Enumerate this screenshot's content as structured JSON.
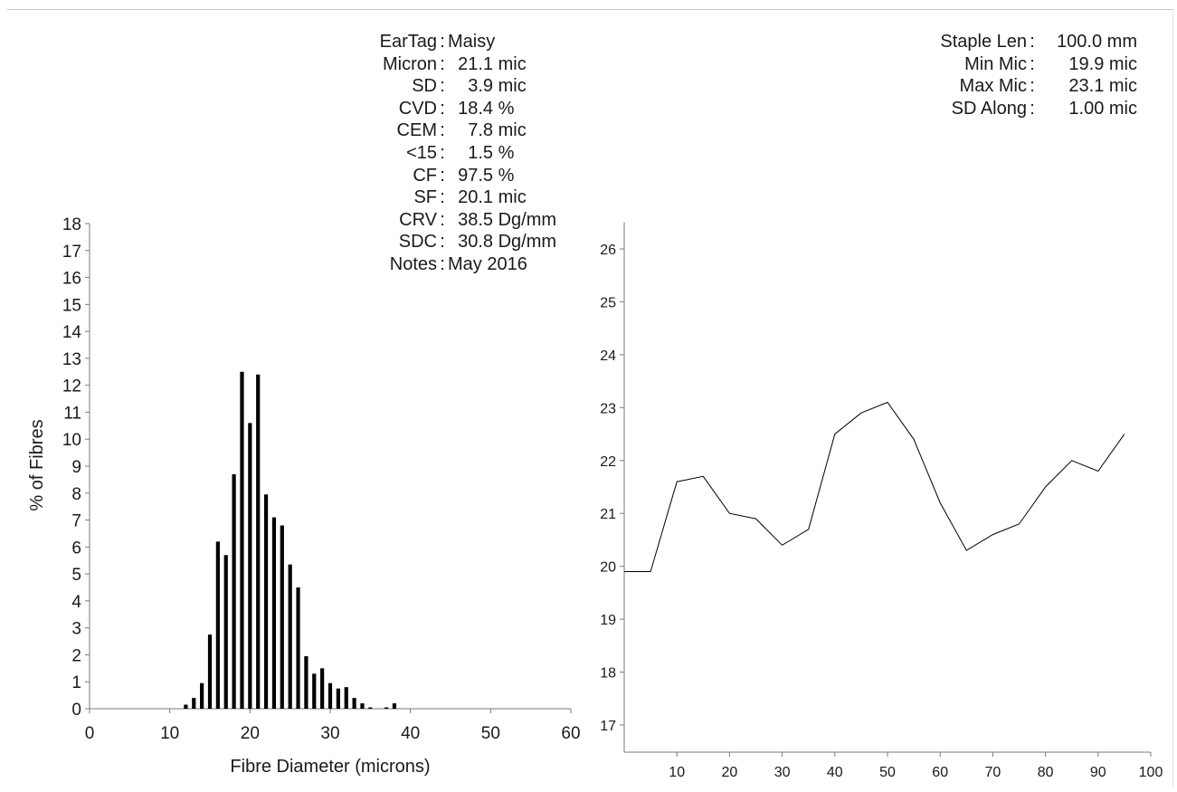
{
  "stats_left": [
    {
      "key": "EarTag",
      "sep": ":",
      "value": "Maisy"
    },
    {
      "key": "Micron",
      "sep": ":",
      "value": "  21.1 mic"
    },
    {
      "key": "SD",
      "sep": ":",
      "value": "    3.9 mic"
    },
    {
      "key": "CVD",
      "sep": ":",
      "value": "  18.4 %"
    },
    {
      "key": "CEM",
      "sep": ":",
      "value": "    7.8 mic"
    },
    {
      "key": "<15",
      "sep": ":",
      "value": "    1.5 %"
    },
    {
      "key": "CF",
      "sep": ":",
      "value": "  97.5 %"
    },
    {
      "key": "SF",
      "sep": ":",
      "value": "  20.1 mic"
    },
    {
      "key": "CRV",
      "sep": ":",
      "value": "  38.5 Dg/mm"
    },
    {
      "key": "SDC",
      "sep": ":",
      "value": "  30.8 Dg/mm"
    },
    {
      "key": "Notes",
      "sep": ":",
      "value": "May 2016"
    }
  ],
  "stats_right": [
    {
      "key": "Staple Len",
      "sep": ":",
      "value": "100.0 mm"
    },
    {
      "key": "Min Mic",
      "sep": ":",
      "value": "19.9 mic"
    },
    {
      "key": "Max Mic",
      "sep": ":",
      "value": "23.1 mic"
    },
    {
      "key": "SD Along",
      "sep": ":",
      "value": "1.00 mic"
    }
  ],
  "chart_data": [
    {
      "type": "bar",
      "title": "",
      "xlabel": "Fibre Diameter (microns)",
      "ylabel": "% of Fibres",
      "xlim": [
        0,
        60
      ],
      "ylim": [
        0,
        18
      ],
      "xticks": [
        0,
        10,
        20,
        30,
        40,
        50,
        60
      ],
      "yticks": [
        0,
        1,
        2,
        3,
        4,
        5,
        6,
        7,
        8,
        9,
        10,
        11,
        12,
        13,
        14,
        15,
        16,
        17,
        18
      ],
      "grid": false,
      "color": "#000000",
      "x": [
        12,
        13,
        14,
        15,
        16,
        17,
        18,
        19,
        20,
        21,
        22,
        23,
        24,
        25,
        26,
        27,
        28,
        29,
        30,
        31,
        32,
        33,
        34,
        35,
        36,
        37,
        38
      ],
      "values": [
        0.15,
        0.4,
        0.95,
        2.75,
        6.2,
        5.7,
        8.7,
        12.5,
        10.6,
        12.4,
        7.95,
        7.1,
        6.8,
        5.35,
        4.5,
        1.95,
        1.3,
        1.5,
        0.95,
        0.75,
        0.8,
        0.4,
        0.2,
        0.05,
        0.0,
        0.05,
        0.2
      ]
    },
    {
      "type": "line",
      "title": "",
      "xlabel": "",
      "ylabel": "",
      "xlim": [
        0,
        100
      ],
      "ylim": [
        16.6,
        26.5
      ],
      "xticks": [
        10,
        20,
        30,
        40,
        50,
        60,
        70,
        80,
        90,
        100
      ],
      "yticks": [
        17,
        18,
        19,
        20,
        21,
        22,
        23,
        24,
        25,
        26
      ],
      "grid": false,
      "color": "#000000",
      "x": [
        0,
        5,
        10,
        15,
        20,
        25,
        30,
        35,
        40,
        45,
        50,
        55,
        60,
        65,
        70,
        75,
        80,
        85,
        90,
        95
      ],
      "values": [
        19.9,
        19.9,
        21.6,
        21.7,
        21.0,
        20.9,
        20.4,
        20.7,
        22.5,
        22.9,
        23.1,
        22.4,
        21.2,
        20.3,
        20.6,
        20.8,
        21.5,
        22.0,
        21.8,
        22.5
      ]
    }
  ]
}
